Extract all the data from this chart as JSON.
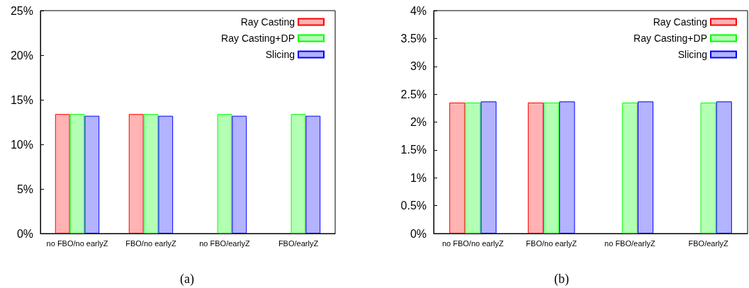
{
  "chart_data": [
    {
      "type": "bar",
      "categories": [
        "no FBO/no earlyZ",
        "FBO/no earlyZ",
        "no FBO/earlyZ",
        "FBO/earlyZ"
      ],
      "series": [
        {
          "name": "Ray Casting",
          "color": "#ffb3b3",
          "values": [
            13.4,
            13.4,
            null,
            null
          ]
        },
        {
          "name": "Ray Casting+DP",
          "color": "#b3ffb3",
          "values": [
            13.4,
            13.4,
            13.4,
            13.4
          ]
        },
        {
          "name": "Slicing",
          "color": "#b3b3ff",
          "values": [
            13.2,
            13.2,
            13.2,
            13.2
          ]
        }
      ],
      "ylim": [
        0,
        25
      ],
      "yticks": [
        {
          "value": 0,
          "label": "0%"
        },
        {
          "value": 5,
          "label": "5%"
        },
        {
          "value": 10,
          "label": "10%"
        },
        {
          "value": 15,
          "label": "15%"
        },
        {
          "value": 20,
          "label": "20%"
        },
        {
          "value": 25,
          "label": "25%"
        }
      ],
      "grid": false,
      "legend": "top right",
      "annotations": [
        "(a)"
      ]
    },
    {
      "type": "bar",
      "categories": [
        "no FBO/no earlyZ",
        "FBO/no earlyZ",
        "no FBO/earlyZ",
        "FBO/earlyZ"
      ],
      "series": [
        {
          "name": "Ray Casting",
          "color": "#ffb3b3",
          "values": [
            2.35,
            2.35,
            null,
            null
          ]
        },
        {
          "name": "Ray Casting+DP",
          "color": "#b3ffb3",
          "values": [
            2.35,
            2.35,
            2.35,
            2.35
          ]
        },
        {
          "name": "Slicing",
          "color": "#b3b3ff",
          "values": [
            2.37,
            2.37,
            2.37,
            2.37
          ]
        }
      ],
      "ylim": [
        0,
        4
      ],
      "yticks": [
        {
          "value": 0,
          "label": "0%"
        },
        {
          "value": 0.5,
          "label": "0.5%"
        },
        {
          "value": 1,
          "label": "1%"
        },
        {
          "value": 1.5,
          "label": "1.5%"
        },
        {
          "value": 2,
          "label": "2%"
        },
        {
          "value": 2.5,
          "label": "2.5%"
        },
        {
          "value": 3,
          "label": "3%"
        },
        {
          "value": 3.5,
          "label": "3.5%"
        },
        {
          "value": 4,
          "label": "4%"
        }
      ],
      "grid": false,
      "legend": "top right",
      "annotations": [
        "(b)"
      ]
    }
  ]
}
